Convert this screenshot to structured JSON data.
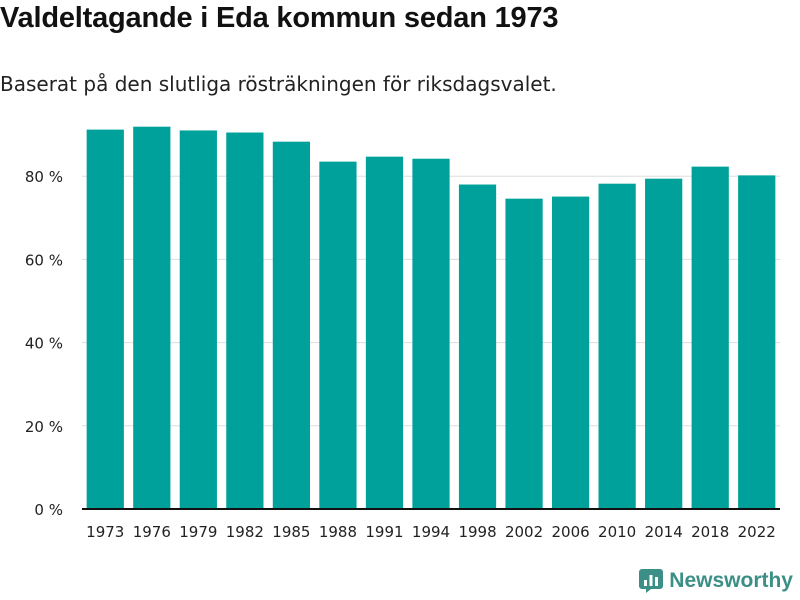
{
  "title": "Valdeltagande i Eda kommun sedan 1973",
  "subtitle": "Baserat på den slutliga rösträkningen för riksdagsvalet.",
  "brand": {
    "name": "Newsworthy",
    "icon": "newsworthy-logo-icon"
  },
  "colors": {
    "bar": "#00a19a",
    "grid": "#dddddd",
    "axis": "#111111",
    "brand": "#3b8f86"
  },
  "chart_data": {
    "type": "bar",
    "title": "Valdeltagande i Eda kommun sedan 1973",
    "xlabel": "",
    "ylabel": "",
    "ylim": [
      0,
      100
    ],
    "yticks": [
      0,
      20,
      40,
      60,
      80
    ],
    "ytick_labels": [
      "0 %",
      "20 %",
      "40 %",
      "60 %",
      "80 %"
    ],
    "grid": true,
    "categories": [
      "1973",
      "1976",
      "1979",
      "1982",
      "1985",
      "1988",
      "1991",
      "1994",
      "1998",
      "2002",
      "2006",
      "2010",
      "2014",
      "2018",
      "2022"
    ],
    "values": [
      91.2,
      91.9,
      91.0,
      90.5,
      88.3,
      83.5,
      84.7,
      84.2,
      78.0,
      74.6,
      75.1,
      78.2,
      79.4,
      82.3,
      80.2
    ]
  }
}
